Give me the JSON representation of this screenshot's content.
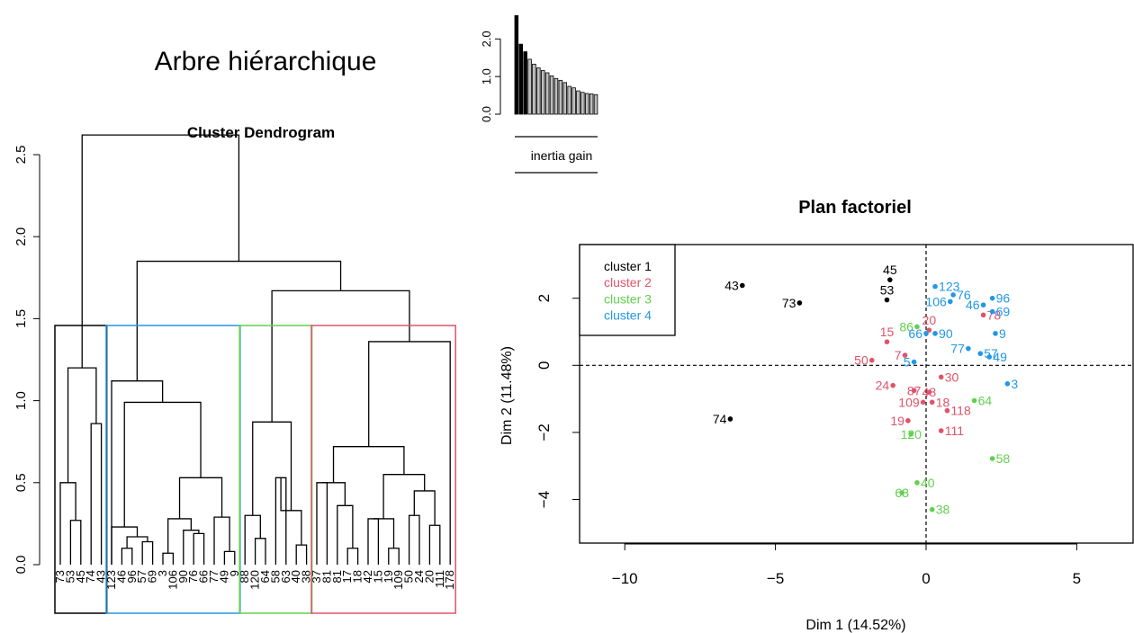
{
  "main_title": "Arbre hiérarchique",
  "colors": {
    "cluster_1": "#000000",
    "cluster_2": "#DF536B",
    "cluster_3": "#61D04F",
    "cluster_4": "#2297E6"
  },
  "chart_data": [
    {
      "type": "bar",
      "name": "inertia-gain",
      "xlabel": "inertia gain",
      "yticks": [
        "0.0",
        "1.0",
        "2.0"
      ],
      "ylim": [
        0,
        2.7
      ],
      "values": [
        2.62,
        1.86,
        1.66,
        1.46,
        1.33,
        1.23,
        1.16,
        1.1,
        1.02,
        0.95,
        0.9,
        0.84,
        0.74,
        0.7,
        0.62,
        0.58,
        0.55,
        0.54,
        0.52
      ],
      "highlighted_count": 3
    },
    {
      "type": "dendrogram",
      "name": "cluster-dendrogram",
      "title": "Cluster Dendrogram",
      "yticks": [
        "0.0",
        "0.5",
        "1.0",
        "1.5",
        "2.0",
        "2.5"
      ],
      "ylim": [
        0,
        2.7
      ],
      "leaves": [
        "73",
        "53",
        "45",
        "74",
        "43",
        "123",
        "46",
        "96",
        "57",
        "69",
        "3",
        "106",
        "90",
        "76",
        "66",
        "77",
        "49",
        "9",
        "88",
        "120",
        "64",
        "58",
        "63",
        "40",
        "38",
        "37",
        "81",
        "81",
        "17",
        "18",
        "42",
        "15",
        "19",
        "109",
        "50",
        "24",
        "20",
        "111",
        "178"
      ],
      "cut_height": 1.52,
      "merge_heights": [
        2.62,
        1.85,
        1.67,
        1.52,
        1.36,
        1.2,
        1.12,
        0.99,
        0.87
      ],
      "clusters": [
        {
          "name": "cluster 1",
          "color": "#000000",
          "leaf_range": [
            0,
            4
          ]
        },
        {
          "name": "cluster 4",
          "color": "#2297E6",
          "leaf_range": [
            5,
            17
          ]
        },
        {
          "name": "cluster 3",
          "color": "#61D04F",
          "leaf_range": [
            18,
            24
          ]
        },
        {
          "name": "cluster 2",
          "color": "#DF536B",
          "leaf_range": [
            25,
            38
          ]
        }
      ]
    },
    {
      "type": "scatter",
      "name": "plan-factoriel",
      "title": "Plan factoriel",
      "xlabel": "Dim 1 (14.52%)",
      "ylabel": "Dim 2 (11.48%)",
      "xlim": [
        -11.5,
        6.9
      ],
      "ylim": [
        -5.3,
        3.6
      ],
      "xticks": [
        {
          "v": -10,
          "t": "−10"
        },
        {
          "v": -5,
          "t": "−5"
        },
        {
          "v": 0,
          "t": "0"
        },
        {
          "v": 5,
          "t": "5"
        }
      ],
      "yticks": [
        {
          "v": -4,
          "t": "−4"
        },
        {
          "v": -2,
          "t": "−2"
        },
        {
          "v": 0,
          "t": "0"
        },
        {
          "v": 2,
          "t": "2"
        }
      ],
      "legend": {
        "position": "top-left",
        "entries": [
          "cluster 1",
          "cluster 2",
          "cluster 3",
          "cluster 4"
        ]
      },
      "points": [
        {
          "label": "43",
          "x": -6.1,
          "y": 2.38,
          "cluster": 1,
          "la": "end"
        },
        {
          "label": "73",
          "x": -4.2,
          "y": 1.86,
          "cluster": 1,
          "la": "end"
        },
        {
          "label": "45",
          "x": -1.2,
          "y": 2.55,
          "cluster": 1,
          "la": "middle",
          "lup": 1
        },
        {
          "label": "53",
          "x": -1.3,
          "y": 1.95,
          "cluster": 1,
          "la": "middle",
          "lup": 1
        },
        {
          "label": "74",
          "x": -6.5,
          "y": -1.6,
          "cluster": 1,
          "la": "end"
        },
        {
          "label": "20",
          "x": 0.1,
          "y": 1.05,
          "cluster": 2,
          "la": "middle",
          "lup": 1
        },
        {
          "label": "78",
          "x": 1.9,
          "y": 1.5,
          "cluster": 2,
          "la": "start"
        },
        {
          "label": "15",
          "x": -1.3,
          "y": 0.7,
          "cluster": 2,
          "la": "middle",
          "lup": 1
        },
        {
          "label": "50",
          "x": -1.8,
          "y": 0.15,
          "cluster": 2,
          "la": "end"
        },
        {
          "label": "7",
          "x": -0.7,
          "y": 0.3,
          "cluster": 2,
          "la": "end"
        },
        {
          "label": "30",
          "x": 0.5,
          "y": -0.35,
          "cluster": 2,
          "la": "start"
        },
        {
          "label": "24",
          "x": -1.1,
          "y": -0.6,
          "cluster": 2,
          "la": "end"
        },
        {
          "label": "87",
          "x": -0.4,
          "y": -0.75,
          "cluster": 2,
          "la": "middle"
        },
        {
          "label": "48",
          "x": 0.1,
          "y": -0.8,
          "cluster": 2,
          "la": "middle"
        },
        {
          "label": "109",
          "x": -0.1,
          "y": -1.1,
          "cluster": 2,
          "la": "end"
        },
        {
          "label": "18",
          "x": 0.2,
          "y": -1.1,
          "cluster": 2,
          "la": "start"
        },
        {
          "label": "118",
          "x": 0.7,
          "y": -1.35,
          "cluster": 2,
          "la": "start"
        },
        {
          "label": "19",
          "x": -0.6,
          "y": -1.65,
          "cluster": 2,
          "la": "end"
        },
        {
          "label": "111",
          "x": 0.5,
          "y": -1.95,
          "cluster": 2,
          "la": "start"
        },
        {
          "label": "86",
          "x": -0.3,
          "y": 1.15,
          "cluster": 3,
          "la": "end"
        },
        {
          "label": "64",
          "x": 1.6,
          "y": -1.05,
          "cluster": 3,
          "la": "start"
        },
        {
          "label": "120",
          "x": -0.5,
          "y": -2.05,
          "cluster": 3,
          "la": "middle"
        },
        {
          "label": "58",
          "x": 2.2,
          "y": -2.78,
          "cluster": 3,
          "la": "start"
        },
        {
          "label": "40",
          "x": -0.3,
          "y": -3.5,
          "cluster": 3,
          "la": "start"
        },
        {
          "label": "63",
          "x": -0.8,
          "y": -3.8,
          "cluster": 3,
          "la": "middle"
        },
        {
          "label": "38",
          "x": 0.2,
          "y": -4.3,
          "cluster": 3,
          "la": "start"
        },
        {
          "label": "123",
          "x": 0.3,
          "y": 2.35,
          "cluster": 4,
          "la": "start"
        },
        {
          "label": "96",
          "x": 2.2,
          "y": 2.0,
          "cluster": 4,
          "la": "start"
        },
        {
          "label": "76",
          "x": 0.9,
          "y": 2.1,
          "cluster": 4,
          "la": "start"
        },
        {
          "label": "106",
          "x": 0.8,
          "y": 1.9,
          "cluster": 4,
          "la": "end"
        },
        {
          "label": "46",
          "x": 1.9,
          "y": 1.8,
          "cluster": 4,
          "la": "end"
        },
        {
          "label": "69",
          "x": 2.2,
          "y": 1.6,
          "cluster": 4,
          "la": "start"
        },
        {
          "label": "90",
          "x": 0.3,
          "y": 0.95,
          "cluster": 4,
          "la": "start"
        },
        {
          "label": "9",
          "x": 2.3,
          "y": 0.95,
          "cluster": 4,
          "la": "start"
        },
        {
          "label": "66",
          "x": 0.0,
          "y": 0.95,
          "cluster": 4,
          "la": "end"
        },
        {
          "label": "77",
          "x": 1.4,
          "y": 0.5,
          "cluster": 4,
          "la": "end"
        },
        {
          "label": "57",
          "x": 1.8,
          "y": 0.35,
          "cluster": 4,
          "la": "start"
        },
        {
          "label": "5",
          "x": -0.4,
          "y": 0.1,
          "cluster": 4,
          "la": "end"
        },
        {
          "label": "49",
          "x": 2.1,
          "y": 0.25,
          "cluster": 4,
          "la": "start"
        },
        {
          "label": "3",
          "x": 2.7,
          "y": -0.55,
          "cluster": 4,
          "la": "start"
        }
      ]
    }
  ]
}
